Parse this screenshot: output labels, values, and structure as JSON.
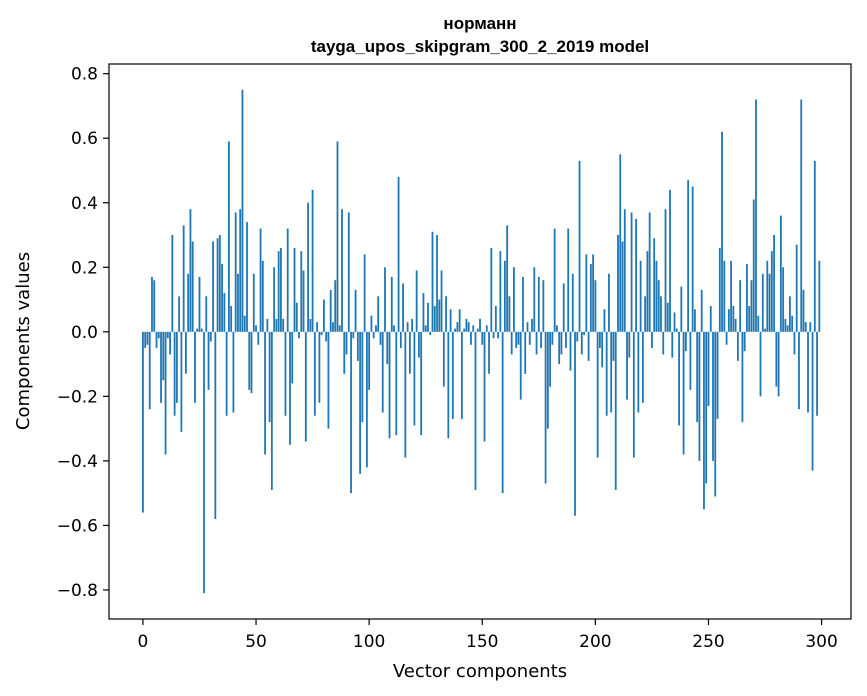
{
  "chart_data": {
    "type": "bar",
    "title": "норманн",
    "subtitle": "tayga_upos_skipgram_300_2_2019 model",
    "xlabel": "Vector components",
    "ylabel": "Components values",
    "xlim": [
      -15,
      313
    ],
    "ylim": [
      -0.89,
      0.83
    ],
    "x_ticks": [
      0,
      50,
      100,
      150,
      200,
      250,
      300
    ],
    "x_tick_labels": [
      "0",
      "50",
      "100",
      "150",
      "200",
      "250",
      "300"
    ],
    "y_ticks": [
      -0.8,
      -0.6,
      -0.4,
      -0.2,
      0.0,
      0.2,
      0.4,
      0.6,
      0.8
    ],
    "y_tick_labels": [
      "−0.8",
      "−0.6",
      "−0.4",
      "−0.2",
      "0.0",
      "0.2",
      "0.4",
      "0.6",
      "0.8"
    ],
    "grid": false,
    "bar_color": "#1f77b4",
    "x": [
      0,
      1,
      2,
      3,
      4,
      5,
      6,
      7,
      8,
      9,
      10,
      11,
      12,
      13,
      14,
      15,
      16,
      17,
      18,
      19,
      20,
      21,
      22,
      23,
      24,
      25,
      26,
      27,
      28,
      29,
      30,
      31,
      32,
      33,
      34,
      35,
      36,
      37,
      38,
      39,
      40,
      41,
      42,
      43,
      44,
      45,
      46,
      47,
      48,
      49,
      50,
      51,
      52,
      53,
      54,
      55,
      56,
      57,
      58,
      59,
      60,
      61,
      62,
      63,
      64,
      65,
      66,
      67,
      68,
      69,
      70,
      71,
      72,
      73,
      74,
      75,
      76,
      77,
      78,
      79,
      80,
      81,
      82,
      83,
      84,
      85,
      86,
      87,
      88,
      89,
      90,
      91,
      92,
      93,
      94,
      95,
      96,
      97,
      98,
      99,
      100,
      101,
      102,
      103,
      104,
      105,
      106,
      107,
      108,
      109,
      110,
      111,
      112,
      113,
      114,
      115,
      116,
      117,
      118,
      119,
      120,
      121,
      122,
      123,
      124,
      125,
      126,
      127,
      128,
      129,
      130,
      131,
      132,
      133,
      134,
      135,
      136,
      137,
      138,
      139,
      140,
      141,
      142,
      143,
      144,
      145,
      146,
      147,
      148,
      149,
      150,
      151,
      152,
      153,
      154,
      155,
      156,
      157,
      158,
      159,
      160,
      161,
      162,
      163,
      164,
      165,
      166,
      167,
      168,
      169,
      170,
      171,
      172,
      173,
      174,
      175,
      176,
      177,
      178,
      179,
      180,
      181,
      182,
      183,
      184,
      185,
      186,
      187,
      188,
      189,
      190,
      191,
      192,
      193,
      194,
      195,
      196,
      197,
      198,
      199,
      200,
      201,
      202,
      203,
      204,
      205,
      206,
      207,
      208,
      209,
      210,
      211,
      212,
      213,
      214,
      215,
      216,
      217,
      218,
      219,
      220,
      221,
      222,
      223,
      224,
      225,
      226,
      227,
      228,
      229,
      230,
      231,
      232,
      233,
      234,
      235,
      236,
      237,
      238,
      239,
      240,
      241,
      242,
      243,
      244,
      245,
      246,
      247,
      248,
      249,
      250,
      251,
      252,
      253,
      254,
      255,
      256,
      257,
      258,
      259,
      260,
      261,
      262,
      263,
      264,
      265,
      266,
      267,
      268,
      269,
      270,
      271,
      272,
      273,
      274,
      275,
      276,
      277,
      278,
      279,
      280,
      281,
      282,
      283,
      284,
      285,
      286,
      287,
      288,
      289,
      290,
      291,
      292,
      293,
      294,
      295,
      296,
      297,
      298,
      299
    ],
    "values": [
      -0.56,
      -0.05,
      -0.04,
      -0.24,
      0.17,
      0.16,
      -0.05,
      -0.02,
      -0.22,
      -0.15,
      -0.38,
      -0.02,
      -0.07,
      0.3,
      -0.26,
      -0.22,
      0.11,
      -0.31,
      0.33,
      -0.13,
      0.18,
      0.38,
      0.28,
      -0.22,
      0.01,
      0.17,
      0.01,
      -0.81,
      0.11,
      -0.18,
      -0.03,
      0.28,
      -0.58,
      0.29,
      0.3,
      0.21,
      0.12,
      -0.26,
      0.59,
      0.08,
      -0.25,
      0.37,
      0.18,
      0.38,
      0.75,
      0.05,
      0.34,
      -0.18,
      -0.19,
      0.18,
      0.02,
      -0.04,
      0.32,
      0.22,
      -0.38,
      0.04,
      -0.28,
      -0.49,
      0.2,
      0.04,
      0.25,
      0.26,
      0.04,
      -0.26,
      0.32,
      -0.35,
      -0.16,
      0.26,
      0.09,
      -0.02,
      0.25,
      0.19,
      -0.34,
      0.4,
      0.04,
      0.44,
      -0.26,
      0.03,
      -0.22,
      -0.01,
      0.1,
      -0.03,
      -0.3,
      0.13,
      0.03,
      0.16,
      0.59,
      0.02,
      0.38,
      -0.13,
      -0.07,
      0.37,
      -0.5,
      -0.02,
      0.13,
      -0.09,
      -0.44,
      -0.28,
      0.24,
      -0.42,
      -0.18,
      0.05,
      -0.02,
      0.02,
      0.11,
      -0.04,
      -0.25,
      0.2,
      -0.1,
      -0.33,
      0.17,
      0.02,
      -0.32,
      0.48,
      -0.05,
      0.15,
      -0.39,
      0.03,
      -0.13,
      0.04,
      -0.29,
      0.19,
      -0.08,
      -0.32,
      0.12,
      0.02,
      0.09,
      -0.01,
      0.31,
      0.08,
      0.3,
      0.1,
      0.19,
      -0.17,
      0.11,
      -0.33,
      0.07,
      -0.27,
      0.01,
      0.03,
      0.07,
      -0.27,
      0.01,
      0.04,
      0.03,
      -0.04,
      0.02,
      -0.49,
      0.01,
      0.04,
      -0.04,
      -0.34,
      0.02,
      -0.13,
      0.26,
      -0.02,
      0.08,
      -0.02,
      0.25,
      -0.5,
      0.22,
      0.33,
      0.11,
      -0.07,
      0.2,
      -0.05,
      -0.04,
      -0.21,
      0.17,
      -0.13,
      0.03,
      -0.04,
      0.04,
      0.2,
      -0.07,
      0.17,
      -0.05,
      0.16,
      -0.47,
      -0.3,
      -0.17,
      -0.04,
      0.32,
      0.02,
      -0.1,
      -0.07,
      0.15,
      -0.05,
      0.32,
      -0.12,
      0.18,
      -0.57,
      -0.03,
      0.53,
      -0.07,
      -0.01,
      0.24,
      -0.09,
      0.21,
      0.24,
      0.16,
      -0.39,
      -0.05,
      -0.11,
      0.07,
      -0.26,
      0.18,
      -0.25,
      -0.09,
      -0.49,
      0.3,
      0.55,
      0.28,
      0.38,
      -0.21,
      -0.08,
      0.37,
      -0.39,
      0.35,
      -0.25,
      0.22,
      -0.22,
      0.11,
      0.25,
      0.37,
      -0.05,
      0.29,
      0.22,
      0.16,
      0.11,
      -0.07,
      0.38,
      0.09,
      0.44,
      -0.08,
      0.06,
      0.01,
      -0.29,
      0.14,
      -0.38,
      -0.06,
      0.47,
      -0.18,
      0.45,
      0.07,
      -0.28,
      -0.4,
      0.13,
      -0.55,
      -0.47,
      -0.23,
      0.08,
      -0.4,
      -0.51,
      -0.27,
      0.26,
      0.62,
      0.22,
      -0.04,
      0.07,
      0.22,
      0.08,
      0.04,
      -0.09,
      0.16,
      -0.28,
      -0.06,
      0.21,
      0.08,
      0.16,
      0.41,
      0.72,
      0.05,
      -0.2,
      0.18,
      0.01,
      0.22,
      0.18,
      0.25,
      0.3,
      -0.17,
      -0.2,
      0.36,
      0.2,
      0.04,
      0.02,
      0.11,
      0.05,
      -0.07,
      0.27,
      -0.24,
      0.72,
      0.13,
      0.03,
      -0.25,
      0.03,
      -0.43,
      0.53,
      -0.26,
      0.22
    ]
  }
}
